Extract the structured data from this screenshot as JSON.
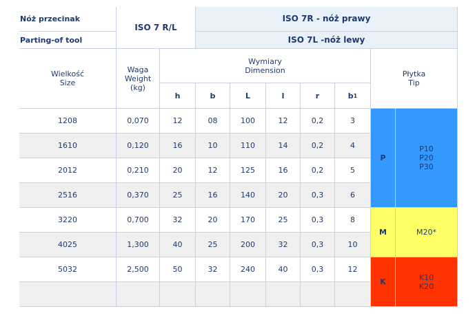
{
  "header": {
    "tool_pl": "Nóż przecinak",
    "tool_en": "Parting-of tool",
    "standard_main": "ISO 7 R/L",
    "standard_r": "ISO 7R - nóż prawy",
    "standard_l": "ISO 7L -nóż lewy",
    "size_pl": "Wielkość",
    "size_en": "Size",
    "weight_pl": "Waga",
    "weight_en": "Weight",
    "weight_unit": "(kg)",
    "dim_pl": "Wymiary",
    "dim_en": "Dimension",
    "tip_pl": "Płytka",
    "tip_en": "Tip",
    "col_h": "h",
    "col_b": "b",
    "col_L": "L",
    "col_l": "l",
    "col_r": "r",
    "col_b1": "b",
    "col_b1_sub": "1"
  },
  "rows": [
    {
      "size": "1208",
      "weight": "0,070",
      "h": "12",
      "b": "08",
      "L": "100",
      "l": "12",
      "r": "0,2",
      "b1": "3"
    },
    {
      "size": "1610",
      "weight": "0,120",
      "h": "16",
      "b": "10",
      "L": "110",
      "l": "14",
      "r": "0,2",
      "b1": "4"
    },
    {
      "size": "2012",
      "weight": "0,210",
      "h": "20",
      "b": "12",
      "L": "125",
      "l": "16",
      "r": "0,2",
      "b1": "5"
    },
    {
      "size": "2516",
      "weight": "0,370",
      "h": "25",
      "b": "16",
      "L": "140",
      "l": "20",
      "r": "0,3",
      "b1": "6"
    },
    {
      "size": "3220",
      "weight": "0,700",
      "h": "32",
      "b": "20",
      "L": "170",
      "l": "25",
      "r": "0,3",
      "b1": "8"
    },
    {
      "size": "4025",
      "weight": "1,300",
      "h": "40",
      "b": "25",
      "L": "200",
      "l": "32",
      "r": "0,3",
      "b1": "10"
    },
    {
      "size": "5032",
      "weight": "2,500",
      "h": "50",
      "b": "32",
      "L": "240",
      "l": "40",
      "r": "0,3",
      "b1": "12"
    }
  ],
  "tips": {
    "p_letter": "P",
    "p_grades": [
      "P10",
      "P20",
      "P30"
    ],
    "m_letter": "M",
    "m_grades": [
      "M20*"
    ],
    "k_letter": "K",
    "k_grades": [
      "K10",
      "K20"
    ]
  },
  "colors": {
    "p": "#3399ff",
    "m": "#ffff66",
    "k": "#ff3300",
    "border": "#c6d2e2",
    "text": "#1f3a6e"
  }
}
